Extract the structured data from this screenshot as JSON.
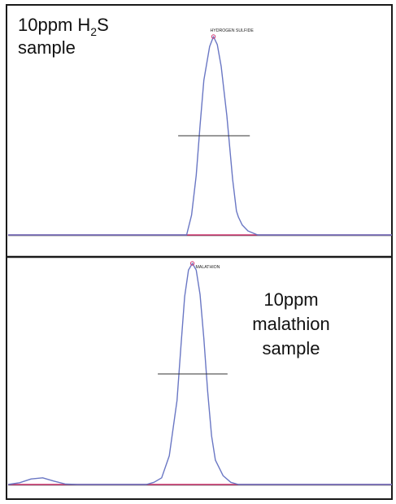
{
  "chart_data": [
    {
      "type": "line",
      "title": "",
      "xlabel": "",
      "ylabel": "",
      "grid": false,
      "sample_label": {
        "lines": [
          {
            "parts": [
              {
                "text": "10ppm H"
              },
              {
                "text": "2",
                "sub": true
              },
              {
                "text": "S"
              }
            ]
          },
          {
            "parts": [
              {
                "text": "sample"
              }
            ]
          }
        ]
      },
      "peak_label": "HYDROGEN SULFIDE",
      "series": [
        {
          "x": [
            0,
            0.4,
            0.465,
            0.478,
            0.49,
            0.5,
            0.51,
            0.525,
            0.535,
            0.545,
            0.555,
            0.57,
            0.585,
            0.595,
            0.6,
            0.61,
            0.625,
            0.65,
            1
          ],
          "values": [
            0,
            0,
            0,
            0.1,
            0.3,
            0.55,
            0.78,
            0.95,
            1.0,
            0.96,
            0.85,
            0.6,
            0.28,
            0.12,
            0.09,
            0.05,
            0.02,
            0,
            0
          ]
        }
      ]
    },
    {
      "type": "line",
      "title": "",
      "xlabel": "",
      "ylabel": "",
      "grid": false,
      "sample_label": {
        "lines": [
          {
            "parts": [
              {
                "text": "10ppm"
              }
            ]
          },
          {
            "parts": [
              {
                "text": "malathion"
              }
            ]
          },
          {
            "parts": [
              {
                "text": "sample"
              }
            ]
          }
        ]
      },
      "peak_label": "MALATHION",
      "series": [
        {
          "x": [
            0,
            0.03,
            0.06,
            0.09,
            0.12,
            0.15,
            0.18,
            0.36,
            0.38,
            0.4,
            0.42,
            0.44,
            0.45,
            0.46,
            0.47,
            0.48,
            0.49,
            0.5,
            0.51,
            0.52,
            0.53,
            0.54,
            0.56,
            0.58,
            0.6,
            1
          ],
          "values": [
            0,
            0.008,
            0.025,
            0.03,
            0.015,
            0.002,
            0,
            0,
            0.01,
            0.03,
            0.13,
            0.38,
            0.62,
            0.85,
            0.97,
            1.0,
            0.97,
            0.86,
            0.66,
            0.42,
            0.22,
            0.11,
            0.04,
            0.01,
            0,
            0
          ]
        }
      ]
    }
  ]
}
